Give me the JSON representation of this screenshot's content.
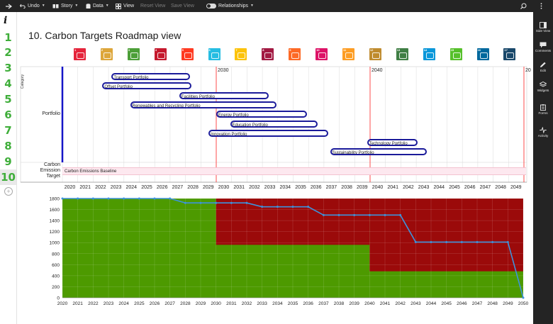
{
  "toolbar": {
    "undo": "Undo",
    "story": "Story",
    "data": "Data",
    "view": "View",
    "reset_view": "Reset View",
    "save_view": "Save View",
    "relationships": "Relationships"
  },
  "right_panel": {
    "items": [
      "Side View",
      "Comments",
      "Edit",
      "Widgets",
      "Forms",
      "Activity"
    ]
  },
  "row_numbers": [
    "1",
    "2",
    "3",
    "4",
    "5",
    "6",
    "7",
    "8",
    "9",
    "10"
  ],
  "page_title": "10. Carbon Targets Roadmap view",
  "sdg_icons": [
    {
      "num": "1",
      "color": "#e5243b"
    },
    {
      "num": "2",
      "color": "#dda63a"
    },
    {
      "num": "3",
      "color": "#4c9f38"
    },
    {
      "num": "4",
      "color": "#c5192d"
    },
    {
      "num": "5",
      "color": "#ff3a21"
    },
    {
      "num": "6",
      "color": "#26bde2"
    },
    {
      "num": "7",
      "color": "#fcc30b"
    },
    {
      "num": "8",
      "color": "#a21942"
    },
    {
      "num": "9",
      "color": "#fd6925"
    },
    {
      "num": "10",
      "color": "#dd1367"
    },
    {
      "num": "11",
      "color": "#fd9d24"
    },
    {
      "num": "12",
      "color": "#bf8b2e"
    },
    {
      "num": "13",
      "color": "#3f7e44"
    },
    {
      "num": "14",
      "color": "#0a97d9"
    },
    {
      "num": "15",
      "color": "#56c02b"
    },
    {
      "num": "16",
      "color": "#00689d"
    },
    {
      "num": "17",
      "color": "#19486a"
    }
  ],
  "roadmap": {
    "category_label": "Category",
    "row_portfolio": "Portfolio",
    "row_carbon_line1": "Carbon",
    "row_carbon_line2": "Emission",
    "row_carbon_line3": "Target",
    "milestones": [
      "2030",
      "2040",
      "20"
    ],
    "bars": [
      {
        "label": "Transport Portfolio",
        "start": 2023.2,
        "end": 2028.3
      },
      {
        "label": "Offset Portfolio",
        "start": 2022.6,
        "end": 2028.4
      },
      {
        "label": "Facilities Portfolio",
        "start": 2027.6,
        "end": 2033.4
      },
      {
        "label": "Renewables and Recycling Portfolio",
        "start": 2024.4,
        "end": 2033.9
      },
      {
        "label": "Energy Portfolio",
        "start": 2030.0,
        "end": 2035.9
      },
      {
        "label": "Education Portfolio",
        "start": 2030.9,
        "end": 2036.6
      },
      {
        "label": "Innovation Portfolio",
        "start": 2029.5,
        "end": 2037.3
      },
      {
        "label": "Technology Portfolio",
        "start": 2039.8,
        "end": 2043.1
      },
      {
        "label": "Sustainability Portfolio",
        "start": 2037.4,
        "end": 2043.7
      }
    ],
    "baseline_label": "Carbon Emissions Baseline",
    "timeline_years": [
      "2020",
      "2021",
      "2022",
      "2023",
      "2024",
      "2025",
      "2026",
      "2027",
      "2028",
      "2029",
      "2030",
      "2031",
      "2032",
      "2033",
      "2034",
      "2035",
      "2036",
      "2037",
      "2038",
      "2039",
      "2040",
      "2041",
      "2042",
      "2043",
      "2044",
      "2045",
      "2046",
      "2047",
      "2048",
      "2049"
    ]
  },
  "chart_data": {
    "type": "line",
    "x": [
      2020,
      2021,
      2022,
      2023,
      2024,
      2025,
      2026,
      2027,
      2028,
      2029,
      2030,
      2031,
      2032,
      2033,
      2034,
      2035,
      2036,
      2037,
      2038,
      2039,
      2040,
      2041,
      2042,
      2043,
      2044,
      2045,
      2046,
      2047,
      2048,
      2049,
      2050
    ],
    "series": [
      {
        "values": [
          1800,
          1800,
          1800,
          1800,
          1800,
          1800,
          1800,
          1800,
          1720,
          1720,
          1720,
          1720,
          1720,
          1650,
          1650,
          1650,
          1650,
          1500,
          1500,
          1500,
          1500,
          1500,
          1500,
          1010,
          1010,
          1010,
          1010,
          1010,
          1010,
          1010,
          0
        ]
      }
    ],
    "bands": [
      {
        "from": 2020,
        "to": 2030,
        "bottom": 1800,
        "top": 1800
      },
      {
        "from": 2030,
        "to": 2040,
        "bottom": 960,
        "top": 1800
      },
      {
        "from": 2040,
        "to": 2050,
        "bottom": 480,
        "top": 1800
      }
    ],
    "yticks": [
      0,
      200,
      400,
      600,
      800,
      1000,
      1200,
      1400,
      1600,
      1800
    ],
    "xticks": [
      2020,
      2021,
      2022,
      2023,
      2024,
      2025,
      2026,
      2027,
      2028,
      2029,
      2030,
      2031,
      2032,
      2033,
      2034,
      2035,
      2036,
      2037,
      2038,
      2039,
      2040,
      2041,
      2042,
      2043,
      2044,
      2045,
      2046,
      2047,
      2048,
      2049,
      2050
    ],
    "ylim": [
      0,
      1800
    ],
    "xlim": [
      2020,
      2050
    ],
    "colors": {
      "green": "#4d9a00",
      "red": "#9b0a0a",
      "line": "#3d93dc"
    },
    "grid": true
  }
}
